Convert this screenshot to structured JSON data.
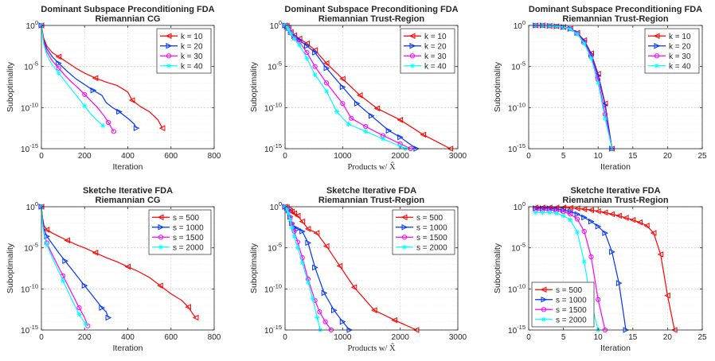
{
  "chart_data": [
    {
      "type": "line",
      "title": [
        "Dominant Subspace Preconditioning FDA",
        "Riemannian CG"
      ],
      "xlabel": "Iteration",
      "xlabel_serif": false,
      "ylabel": "Suboptimality",
      "xlim": [
        0,
        800
      ],
      "xticks": [
        0,
        200,
        400,
        600,
        800
      ],
      "ylog": true,
      "ylim_exp": [
        -15,
        0
      ],
      "yticks_exp": [
        0,
        -5,
        -10,
        -15
      ],
      "grid": true,
      "legend_position": "top-right",
      "marker_every": 4,
      "series": [
        {
          "name": "k = 10",
          "color": "#ff0000",
          "marker": "triangle-left",
          "x": [
            0,
            10,
            25,
            50,
            80,
            120,
            160,
            200,
            250,
            300,
            350,
            400,
            420,
            460,
            500,
            540,
            560
          ],
          "y": [
            0,
            -1.5,
            -2.5,
            -3.3,
            -3.8,
            -4.5,
            -5.2,
            -5.8,
            -6.4,
            -6.9,
            -7.3,
            -8.1,
            -9.1,
            -9.9,
            -10.5,
            -11.5,
            -12.5
          ]
        },
        {
          "name": "k = 20",
          "color": "#0033ff",
          "marker": "triangle-right",
          "x": [
            0,
            10,
            25,
            50,
            80,
            120,
            160,
            200,
            240,
            280,
            300,
            330,
            360,
            400,
            430,
            440
          ],
          "y": [
            0,
            -1.8,
            -2.8,
            -3.8,
            -4.6,
            -5.6,
            -6.5,
            -7.2,
            -7.9,
            -8.5,
            -9.4,
            -10,
            -10.5,
            -11.3,
            -12,
            -12.5
          ]
        },
        {
          "name": "k = 30",
          "color": "#ff00ff",
          "marker": "circle",
          "x": [
            0,
            10,
            25,
            50,
            80,
            110,
            140,
            170,
            200,
            230,
            260,
            290,
            310,
            325,
            335
          ],
          "y": [
            0,
            -2,
            -3.2,
            -4.3,
            -5.2,
            -6.1,
            -6.9,
            -7.6,
            -8.4,
            -9.2,
            -10,
            -11,
            -11.8,
            -12.5,
            -12.9
          ]
        },
        {
          "name": "k = 40",
          "color": "#00ffff",
          "marker": "star",
          "x": [
            0,
            10,
            25,
            50,
            80,
            110,
            140,
            170,
            200,
            230,
            260,
            285
          ],
          "y": [
            0,
            -2.2,
            -3.6,
            -4.8,
            -5.8,
            -6.8,
            -7.8,
            -8.8,
            -9.8,
            -10.8,
            -11.6,
            -12.2
          ]
        }
      ]
    },
    {
      "type": "line",
      "title": [
        "Dominant Subspace Preconditioning FDA",
        "Riemannian Trust-Region"
      ],
      "xlabel": "Products w/ X̂",
      "xlabel_serif": true,
      "ylabel": "Suboptimality",
      "xlim": [
        0,
        3000
      ],
      "xticks": [
        0,
        1000,
        2000,
        3000
      ],
      "ylog": true,
      "ylim_exp": [
        -15,
        0
      ],
      "yticks_exp": [
        0,
        -5,
        -10,
        -15
      ],
      "grid": true,
      "legend_position": "top-right",
      "marker_every": 1,
      "series": [
        {
          "name": "k = 10",
          "color": "#ff0000",
          "marker": "triangle-left",
          "x": [
            0,
            30,
            60,
            100,
            160,
            250,
            380,
            520,
            720,
            1000,
            1300,
            1600,
            2000,
            2400,
            2870
          ],
          "y": [
            0,
            -0.05,
            -0.3,
            -0.8,
            -1.2,
            -1.6,
            -2.2,
            -3,
            -4.6,
            -6.5,
            -8.5,
            -10.1,
            -11.5,
            -13.3,
            -15
          ]
        },
        {
          "name": "k = 20",
          "color": "#0033ff",
          "marker": "triangle-right",
          "x": [
            0,
            30,
            60,
            100,
            160,
            250,
            380,
            520,
            720,
            1000,
            1250,
            1500,
            1800,
            2000,
            2280
          ],
          "y": [
            0,
            -0.1,
            -0.3,
            -0.8,
            -1.3,
            -1.8,
            -2.5,
            -3.3,
            -5.2,
            -7.5,
            -9.5,
            -11,
            -12.8,
            -13.6,
            -15
          ]
        },
        {
          "name": "k = 30",
          "color": "#ff00ff",
          "marker": "circle",
          "x": [
            0,
            30,
            60,
            100,
            160,
            250,
            380,
            520,
            720,
            1000,
            1150,
            1400,
            1700,
            2000,
            2180
          ],
          "y": [
            0,
            -0.1,
            -0.4,
            -0.9,
            -1.5,
            -2,
            -3.3,
            -5,
            -7,
            -9.5,
            -11.3,
            -12.3,
            -13.4,
            -14.4,
            -15
          ]
        },
        {
          "name": "k = 40",
          "color": "#00ffff",
          "marker": "star",
          "x": [
            0,
            30,
            60,
            100,
            160,
            250,
            380,
            520,
            720,
            900,
            1100,
            1400,
            1700,
            2000,
            2090
          ],
          "y": [
            0,
            -0.1,
            -0.5,
            -1,
            -1.6,
            -2.4,
            -4,
            -6,
            -8,
            -10.5,
            -12,
            -12.9,
            -13.8,
            -14.7,
            -15
          ]
        }
      ]
    },
    {
      "type": "line",
      "title": [
        "Dominant Subspace Preconditioning FDA",
        "Riemannian Trust-Region"
      ],
      "xlabel": "Iteration",
      "xlabel_serif": false,
      "ylabel": "Suboptimality",
      "xlim": [
        0,
        25
      ],
      "xticks": [
        0,
        5,
        10,
        15,
        20,
        25
      ],
      "ylog": true,
      "ylim_exp": [
        -15,
        0
      ],
      "yticks_exp": [
        0,
        -5,
        -10,
        -15
      ],
      "grid": true,
      "legend_position": "top-right",
      "marker_every": 1,
      "series": [
        {
          "name": "k = 10",
          "color": "#ff0000",
          "marker": "triangle-left",
          "x": [
            1,
            2,
            3,
            4,
            5,
            6,
            7,
            8,
            9,
            10,
            11,
            12
          ],
          "y": [
            0,
            0,
            -0.05,
            -0.1,
            -0.2,
            -0.4,
            -0.9,
            -1.8,
            -3.4,
            -5.9,
            -9.5,
            -15
          ]
        },
        {
          "name": "k = 20",
          "color": "#0033ff",
          "marker": "triangle-right",
          "x": [
            1,
            2,
            3,
            4,
            5,
            6,
            7,
            8,
            9,
            10,
            11,
            12
          ],
          "y": [
            0,
            0,
            -0.05,
            -0.1,
            -0.2,
            -0.4,
            -0.9,
            -1.9,
            -3.5,
            -6.1,
            -9.7,
            -15
          ]
        },
        {
          "name": "k = 30",
          "color": "#ff00ff",
          "marker": "circle",
          "x": [
            1,
            2,
            3,
            4,
            5,
            6,
            7,
            8,
            9,
            10,
            11,
            12
          ],
          "y": [
            0,
            0,
            -0.05,
            -0.1,
            -0.2,
            -0.4,
            -1.0,
            -2.1,
            -3.8,
            -6.6,
            -10.8,
            -15
          ]
        },
        {
          "name": "k = 40",
          "color": "#00ffff",
          "marker": "star",
          "x": [
            1,
            2,
            3,
            4,
            5,
            6,
            7,
            8,
            9,
            10,
            11,
            12
          ],
          "y": [
            0,
            0,
            -0.05,
            -0.1,
            -0.2,
            -0.45,
            -1.05,
            -2.2,
            -4.0,
            -7.0,
            -11.3,
            -15
          ]
        }
      ]
    },
    {
      "type": "line",
      "title": [
        "Sketche Iterative FDA",
        "Riemannian CG"
      ],
      "xlabel": "Iteration",
      "xlabel_serif": false,
      "ylabel": "Suboptimality",
      "xlim": [
        0,
        800
      ],
      "xticks": [
        0,
        200,
        400,
        600,
        800
      ],
      "ylog": true,
      "ylim_exp": [
        -15,
        0
      ],
      "yticks_exp": [
        0,
        -5,
        -10,
        -15
      ],
      "grid": true,
      "legend_position": "top-right",
      "marker_every": 3,
      "series": [
        {
          "name": "s = 500",
          "color": "#ff0000",
          "marker": "triangle-left",
          "x": [
            0,
            5,
            12,
            25,
            50,
            80,
            120,
            160,
            200,
            250,
            300,
            350,
            400,
            450,
            500,
            550,
            600,
            650,
            680,
            700,
            715
          ],
          "y": [
            0,
            -1.3,
            -2.3,
            -2.8,
            -3.2,
            -3.6,
            -4.1,
            -4.6,
            -5,
            -5.6,
            -6.2,
            -6.7,
            -7.3,
            -7.9,
            -8.6,
            -9.6,
            -10.6,
            -11.4,
            -12.2,
            -13,
            -13.5
          ]
        },
        {
          "name": "s = 1000",
          "color": "#0033ff",
          "marker": "triangle-right",
          "x": [
            0,
            5,
            12,
            25,
            50,
            80,
            110,
            140,
            170,
            200,
            230,
            260,
            280,
            300,
            310
          ],
          "y": [
            0,
            -1.5,
            -2.7,
            -3.6,
            -4.5,
            -5.6,
            -6.6,
            -7.6,
            -8.6,
            -9.6,
            -10.6,
            -11.6,
            -12.3,
            -12.8,
            -13.5
          ]
        },
        {
          "name": "s = 1500",
          "color": "#ff00ff",
          "marker": "circle",
          "x": [
            0,
            5,
            12,
            25,
            50,
            75,
            100,
            125,
            150,
            175,
            200,
            215
          ],
          "y": [
            0,
            -1.9,
            -3.2,
            -4.4,
            -5.8,
            -7.1,
            -8.4,
            -9.7,
            -11,
            -12.3,
            -13.5,
            -14.5
          ]
        },
        {
          "name": "s = 2000",
          "color": "#00ffff",
          "marker": "star",
          "x": [
            0,
            5,
            12,
            25,
            50,
            75,
            100,
            125,
            150,
            175,
            200,
            205
          ],
          "y": [
            0,
            -2,
            -3.4,
            -4.6,
            -6.2,
            -7.6,
            -9,
            -10.4,
            -11.8,
            -13.1,
            -14.1,
            -14.3
          ]
        }
      ]
    },
    {
      "type": "line",
      "title": [
        "Sketche Iterative FDA",
        "Riemannian Trust-Region"
      ],
      "xlabel": "Products w/ X̂",
      "xlabel_serif": true,
      "ylabel": "Suboptimality",
      "xlim": [
        0,
        3000
      ],
      "xticks": [
        0,
        1000,
        2000,
        3000
      ],
      "ylog": true,
      "ylim_exp": [
        -15,
        0
      ],
      "yticks_exp": [
        0,
        -5,
        -10,
        -15
      ],
      "grid": true,
      "legend_position": "top-right",
      "marker_every": 1,
      "series": [
        {
          "name": "s = 500",
          "color": "#ff0000",
          "marker": "triangle-left",
          "x": [
            0,
            30,
            60,
            90,
            120,
            160,
            220,
            300,
            400,
            550,
            720,
            950,
            1200,
            1550,
            1900,
            2280
          ],
          "y": [
            0,
            -0.05,
            -0.3,
            -0.5,
            -0.6,
            -0.8,
            -1.1,
            -1.8,
            -2.7,
            -3.2,
            -4.8,
            -7.2,
            -9.8,
            -12.6,
            -13.8,
            -15
          ]
        },
        {
          "name": "s = 1000",
          "color": "#0033ff",
          "marker": "triangle-right",
          "x": [
            0,
            30,
            60,
            90,
            120,
            160,
            220,
            300,
            400,
            520,
            680,
            850,
            1000,
            1120
          ],
          "y": [
            0,
            -0.1,
            -0.4,
            -1.2,
            -2,
            -2.5,
            -2.7,
            -3,
            -4.4,
            -7.4,
            -10.5,
            -12.6,
            -14,
            -15
          ]
        },
        {
          "name": "s = 1500",
          "color": "#ff00ff",
          "marker": "circle",
          "x": [
            0,
            30,
            60,
            90,
            120,
            160,
            220,
            300,
            400,
            520,
            600,
            700,
            800
          ],
          "y": [
            0,
            -0.2,
            -0.6,
            -1.3,
            -2.1,
            -3,
            -4.3,
            -6.2,
            -8.8,
            -11.4,
            -12.8,
            -14,
            -15
          ]
        },
        {
          "name": "s = 2000",
          "color": "#00ffff",
          "marker": "star",
          "x": [
            0,
            30,
            60,
            90,
            120,
            160,
            220,
            300,
            400,
            480,
            560,
            610
          ],
          "y": [
            0,
            -0.3,
            -0.8,
            -1.6,
            -2.5,
            -3.6,
            -5,
            -6.8,
            -9.2,
            -11.2,
            -13.5,
            -15
          ]
        }
      ]
    },
    {
      "type": "line",
      "title": [
        "Sketche Iterative FDA",
        "Riemannian Trust-Region"
      ],
      "xlabel": "Iteration",
      "xlabel_serif": false,
      "ylabel": "Suboptimality",
      "xlim": [
        0,
        25
      ],
      "xticks": [
        0,
        5,
        10,
        15,
        20,
        25
      ],
      "ylog": true,
      "ylim_exp": [
        -15,
        0
      ],
      "yticks_exp": [
        0,
        -5,
        -10,
        -15
      ],
      "grid": true,
      "legend_position": "bottom-left",
      "marker_every": 1,
      "series": [
        {
          "name": "s = 500",
          "color": "#ff0000",
          "marker": "triangle-left",
          "x": [
            1,
            2,
            3,
            4,
            5,
            6,
            7,
            8,
            9,
            10,
            11,
            12,
            13,
            14,
            15,
            16,
            17,
            18,
            19,
            20,
            21
          ],
          "y": [
            -0.1,
            -0.1,
            -0.1,
            -0.1,
            -0.1,
            -0.15,
            -0.2,
            -0.3,
            -0.4,
            -0.55,
            -0.7,
            -0.9,
            -1.1,
            -1.35,
            -1.6,
            -1.9,
            -2.3,
            -3.2,
            -5.8,
            -10.8,
            -15
          ]
        },
        {
          "name": "s = 1000",
          "color": "#0033ff",
          "marker": "triangle-right",
          "x": [
            1,
            2,
            3,
            4,
            5,
            6,
            7,
            8,
            9,
            10,
            11,
            12,
            13,
            14
          ],
          "y": [
            -0.2,
            -0.2,
            -0.2,
            -0.3,
            -0.4,
            -0.6,
            -0.9,
            -1.3,
            -1.8,
            -2.4,
            -3.2,
            -5.5,
            -9.3,
            -15
          ]
        },
        {
          "name": "s = 1500",
          "color": "#ff00ff",
          "marker": "circle",
          "x": [
            1,
            2,
            3,
            4,
            5,
            6,
            7,
            8,
            9,
            10,
            11
          ],
          "y": [
            -0.4,
            -0.4,
            -0.4,
            -0.5,
            -0.6,
            -0.9,
            -1.5,
            -3,
            -6.1,
            -11.3,
            -15
          ]
        },
        {
          "name": "s = 2000",
          "color": "#00ffff",
          "marker": "star",
          "x": [
            1,
            2,
            3,
            4,
            5,
            6,
            7,
            8,
            9,
            10
          ],
          "y": [
            -0.7,
            -0.7,
            -0.7,
            -0.8,
            -1.1,
            -1.6,
            -3.1,
            -6.7,
            -11.7,
            -15
          ]
        }
      ]
    }
  ]
}
